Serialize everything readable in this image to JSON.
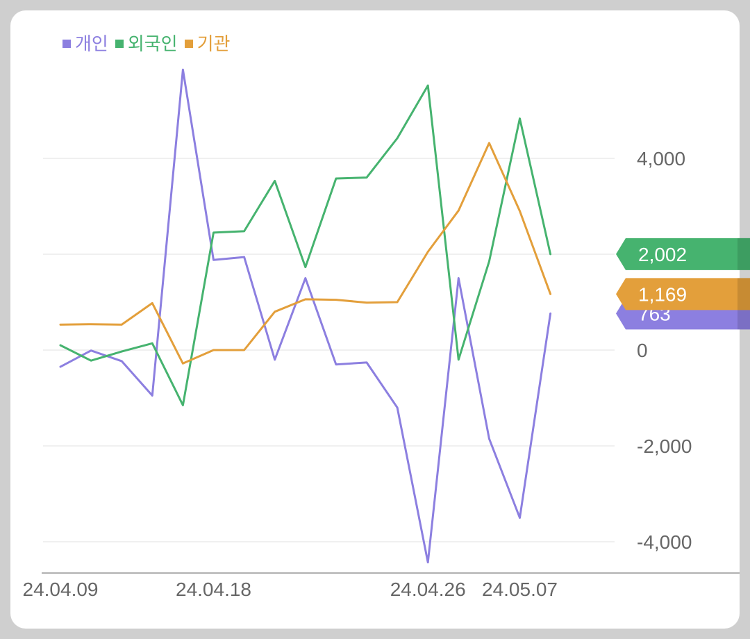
{
  "legend": [
    {
      "label": "개인",
      "color": "#8c7fe0"
    },
    {
      "label": "외국인",
      "color": "#46b36f"
    },
    {
      "label": "기관",
      "color": "#e39f3b"
    }
  ],
  "chart_data": {
    "type": "line",
    "x": [
      "24.04.09",
      "",
      "",
      "",
      "",
      "24.04.18",
      "",
      "",
      "",
      "",
      "",
      "",
      "24.04.26",
      "",
      "",
      "24.05.07",
      ""
    ],
    "x_tick_labels": [
      "24.04.09",
      "24.04.18",
      "24.04.26",
      "24.05.07"
    ],
    "ylim": [
      -4600,
      5900
    ],
    "y_ticks": [
      {
        "value": 4000,
        "label": "4,000"
      },
      {
        "value": 2000,
        "label": "2,000"
      },
      {
        "value": 0,
        "label": "0"
      },
      {
        "value": -2000,
        "label": "-2,000"
      },
      {
        "value": -4000,
        "label": "-4,000"
      }
    ],
    "grid": true,
    "legend_position": "top-left",
    "series": [
      {
        "name": "개인",
        "color": "#8c7fe0",
        "values": [
          -350,
          -10,
          -230,
          -950,
          5850,
          1880,
          1940,
          -200,
          1500,
          -300,
          -260,
          -1200,
          -4430,
          1500,
          -1850,
          -3500,
          763
        ]
      },
      {
        "name": "외국인",
        "color": "#46b36f",
        "values": [
          100,
          -220,
          -30,
          140,
          -1150,
          2450,
          2480,
          3530,
          1730,
          3580,
          3600,
          4420,
          5520,
          -200,
          1850,
          4830,
          2002
        ]
      },
      {
        "name": "기관",
        "color": "#e39f3b",
        "values": [
          530,
          540,
          530,
          980,
          -280,
          0,
          0,
          800,
          1060,
          1050,
          990,
          1000,
          2050,
          2910,
          4320,
          2900,
          1169
        ]
      }
    ],
    "end_labels": [
      {
        "series": "외국인",
        "text": "2,002",
        "color": "#46b36f"
      },
      {
        "series": "기관",
        "text": "1,169",
        "color": "#e39f3b"
      },
      {
        "series": "개인",
        "text": "763",
        "color": "#8c7fe0"
      }
    ]
  }
}
